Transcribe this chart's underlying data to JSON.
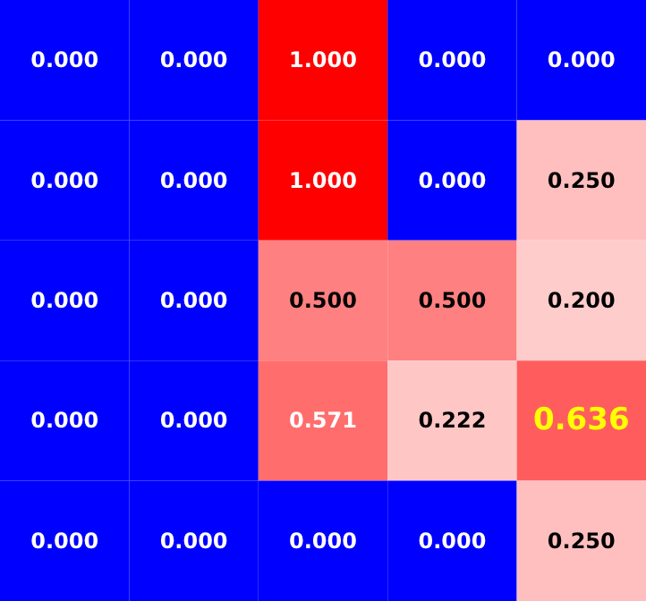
{
  "chart_data": {
    "type": "heatmap",
    "categories": [
      null,
      null,
      null,
      null,
      null
    ],
    "y_categories": [
      null,
      null,
      null,
      null,
      null
    ],
    "cells": [
      [
        0,
        0,
        1,
        0,
        0
      ],
      [
        0,
        0,
        1,
        0,
        0.25
      ],
      [
        0,
        0,
        0.5,
        0.5,
        0.2
      ],
      [
        0,
        0,
        0.571,
        0.222,
        0.636
      ],
      [
        0,
        0,
        0,
        0,
        0.25
      ]
    ],
    "cell_labels": [
      [
        "0.000",
        "0.000",
        "1.000",
        "0.000",
        "0.000"
      ],
      [
        "0.000",
        "0.000",
        "1.000",
        "0.000",
        "0.250"
      ],
      [
        "0.000",
        "0.000",
        "0.500",
        "0.500",
        "0.200"
      ],
      [
        "0.000",
        "0.000",
        "0.571",
        "0.222",
        "0.636"
      ],
      [
        "0.000",
        "0.000",
        "0.000",
        "0.000",
        "0.250"
      ]
    ]
  }
}
